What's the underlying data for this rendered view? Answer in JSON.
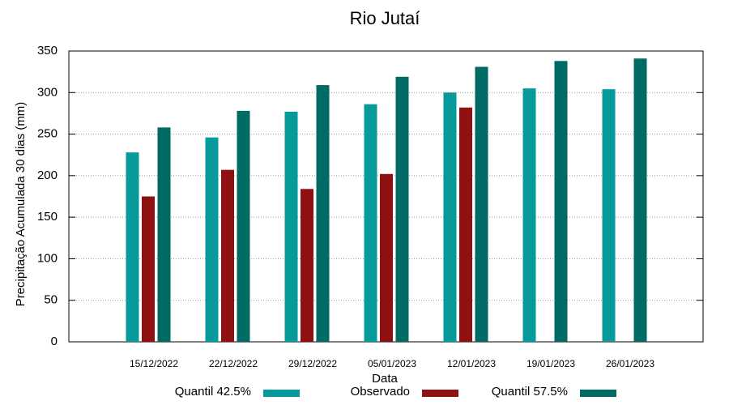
{
  "chart_data": {
    "type": "bar",
    "title": "Rio Jutaí",
    "x_label": "Data",
    "y_label": "Precipitação Acumulada 30 dias (mm)",
    "categories": [
      "15/12/2022",
      "22/12/2022",
      "29/12/2022",
      "05/01/2023",
      "12/01/2023",
      "19/01/2023",
      "26/01/2023"
    ],
    "series": [
      {
        "name": "Quantil 42.5%",
        "color": "#069a9a",
        "values": [
          228,
          246,
          277,
          286,
          300,
          305,
          304
        ]
      },
      {
        "name": "Observado",
        "color": "#8f1010",
        "values": [
          175,
          207,
          184,
          202,
          282,
          null,
          null
        ]
      },
      {
        "name": "Quantil 57.5%",
        "color": "#006a64",
        "values": [
          258,
          278,
          309,
          319,
          331,
          338,
          341
        ]
      }
    ],
    "ylim": [
      0,
      350
    ],
    "yticks": [
      0,
      50,
      100,
      150,
      200,
      250,
      300,
      350
    ],
    "grid": true,
    "legend": "bottom"
  }
}
